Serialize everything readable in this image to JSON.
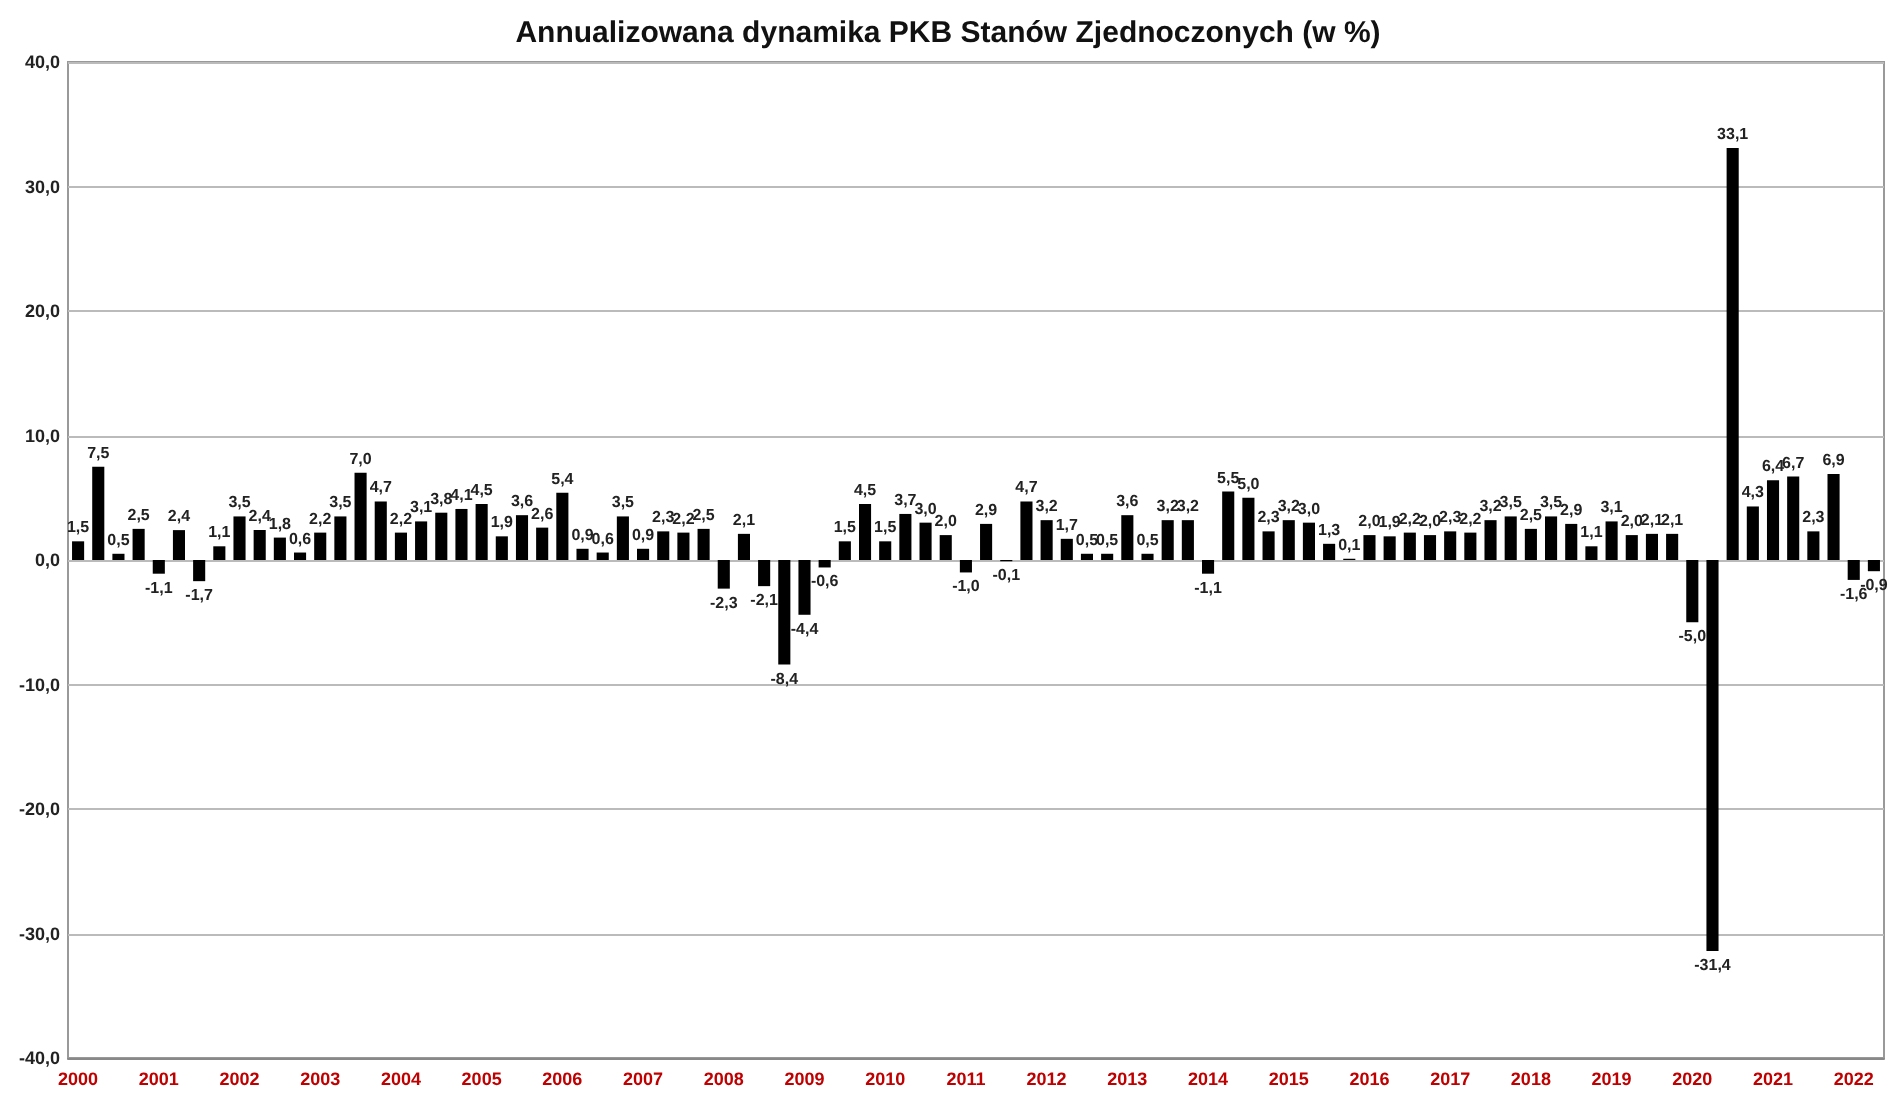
{
  "chart_data": {
    "type": "bar",
    "title": "Annualizowana dynamika PKB Stanów Zjednoczonych (w %)",
    "categories": [
      "2000",
      null,
      null,
      null,
      "2001",
      null,
      null,
      null,
      "2002",
      null,
      null,
      null,
      "2003",
      null,
      null,
      null,
      "2004",
      null,
      null,
      null,
      "2005",
      null,
      null,
      null,
      "2006",
      null,
      null,
      null,
      "2007",
      null,
      null,
      null,
      "2008",
      null,
      null,
      null,
      "2009",
      null,
      null,
      null,
      "2010",
      null,
      null,
      null,
      "2011",
      null,
      null,
      null,
      "2012",
      null,
      null,
      null,
      "2013",
      null,
      null,
      null,
      "2014",
      null,
      null,
      null,
      "2015",
      null,
      null,
      null,
      "2016",
      null,
      null,
      null,
      "2017",
      null,
      null,
      null,
      "2018",
      null,
      null,
      null,
      "2019",
      null,
      null,
      null,
      "2020",
      null,
      null,
      null,
      "2021",
      null,
      null,
      null,
      "2022",
      null
    ],
    "values": [
      1.5,
      7.5,
      0.5,
      2.5,
      -1.1,
      2.4,
      -1.7,
      1.1,
      3.5,
      2.4,
      1.8,
      0.6,
      2.2,
      3.5,
      7.0,
      4.7,
      2.2,
      3.1,
      3.8,
      4.1,
      4.5,
      1.9,
      3.6,
      2.6,
      5.4,
      0.9,
      0.6,
      3.5,
      0.9,
      2.3,
      2.2,
      2.5,
      -2.3,
      2.1,
      -2.1,
      -8.4,
      -4.4,
      -0.6,
      1.5,
      4.5,
      1.5,
      3.7,
      3.0,
      2.0,
      -1.0,
      2.9,
      -0.1,
      4.7,
      3.2,
      1.7,
      0.5,
      0.5,
      3.6,
      0.5,
      3.2,
      3.2,
      -1.1,
      5.5,
      5.0,
      2.3,
      3.2,
      3.0,
      1.3,
      0.1,
      2.0,
      1.9,
      2.2,
      2.0,
      2.3,
      2.2,
      3.2,
      3.5,
      2.5,
      3.5,
      2.9,
      1.1,
      3.1,
      2.0,
      2.1,
      2.1,
      -5.0,
      -31.4,
      33.1,
      4.3,
      6.4,
      6.7,
      2.3,
      6.9,
      -1.6,
      -0.9
    ],
    "value_labels": [
      "1,5",
      "7,5",
      "0,5",
      "2,5",
      "-1,1",
      "2,4",
      "-1,7",
      "1,1",
      "3,5",
      "2,4",
      "1,8",
      "0,6",
      "2,2",
      "3,5",
      "7,0",
      "4,7",
      "2,2",
      "3,1",
      "3,8",
      "4,1",
      "4,5",
      "1,9",
      "3,6",
      "2,6",
      "5,4",
      "0,9",
      "0,6",
      "3,5",
      "0,9",
      "2,3",
      "2,2",
      "2,5",
      "-2,3",
      "2,1",
      "-2,1",
      "-8,4",
      "-4,4",
      "-0,6",
      "1,5",
      "4,5",
      "1,5",
      "3,7",
      "3,0",
      "2,0",
      "-1,0",
      "2,9",
      "-0,1",
      "4,7",
      "3,2",
      "1,7",
      "0,5",
      "0,5",
      "3,6",
      "0,5",
      "3,2",
      "3,2",
      "-1,1",
      "5,5",
      "5,0",
      "2,3",
      "3,2",
      "3,0",
      "1,3",
      "0,1",
      "2,0",
      "1,9",
      "2,2",
      "2,0",
      "2,3",
      "2,2",
      "3,2",
      "3,5",
      "2,5",
      "3,5",
      "2,9",
      "1,1",
      "3,1",
      "2,0",
      "2,1",
      "2,1",
      "-5,0",
      "-31,4",
      "33,1",
      "4,3",
      "6,4",
      "6,7",
      "2,3",
      "6,9",
      "-1,6",
      "-0,9"
    ],
    "color": "#000000",
    "ylim": [
      -40,
      40
    ],
    "yticks": [
      {
        "value": -40,
        "label": "-40,0"
      },
      {
        "value": -30,
        "label": "-30,0"
      },
      {
        "value": -20,
        "label": "-20,0"
      },
      {
        "value": -10,
        "label": "-10,0"
      },
      {
        "value": 0,
        "label": "0,0"
      },
      {
        "value": 10,
        "label": "10,0"
      },
      {
        "value": 20,
        "label": "20,0"
      },
      {
        "value": 30,
        "label": "30,0"
      },
      {
        "value": 40,
        "label": "40,0"
      }
    ],
    "grid": "y"
  }
}
